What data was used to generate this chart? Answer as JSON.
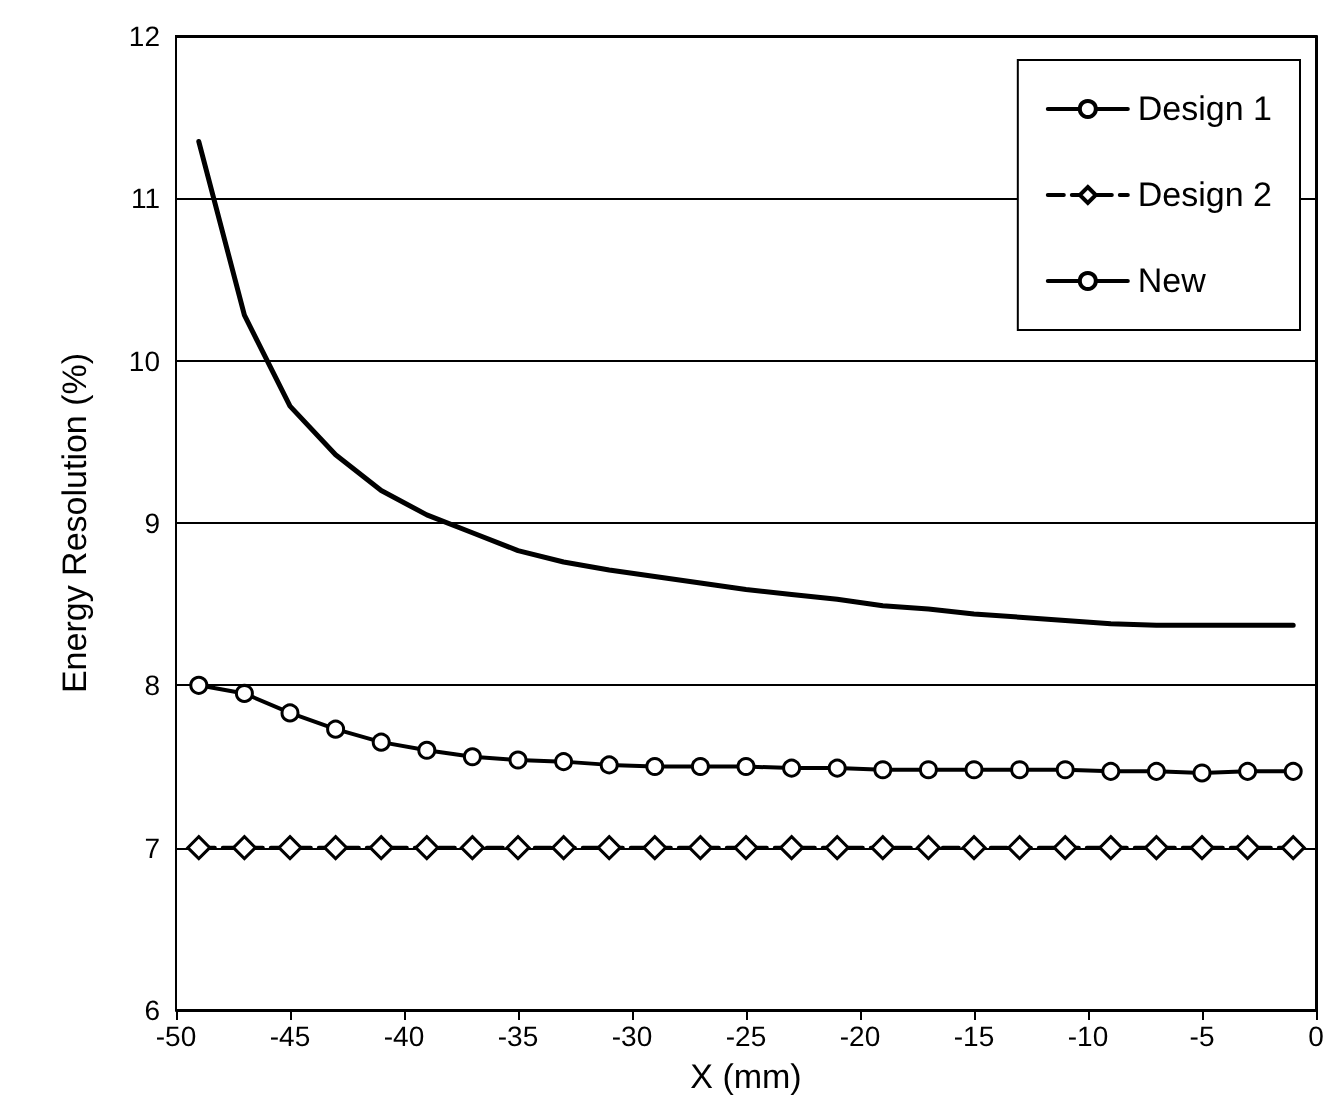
{
  "chart_data": {
    "type": "line",
    "xlabel": "X (mm)",
    "ylabel": "Energy Resolution (%)",
    "x": [
      -49,
      -47,
      -45,
      -43,
      -41,
      -39,
      -37,
      -35,
      -33,
      -31,
      -29,
      -27,
      -25,
      -23,
      -21,
      -19,
      -17,
      -15,
      -13,
      -11,
      -9,
      -7,
      -5,
      -3,
      -1
    ],
    "series": [
      {
        "name": "Design 1",
        "color": "#000000",
        "marker": "none",
        "line_style": "solid",
        "values": [
          11.35,
          10.28,
          9.72,
          9.42,
          9.2,
          9.05,
          8.94,
          8.83,
          8.76,
          8.71,
          8.67,
          8.63,
          8.59,
          8.56,
          8.53,
          8.49,
          8.47,
          8.44,
          8.42,
          8.4,
          8.38,
          8.37,
          8.37,
          8.37,
          8.37
        ]
      },
      {
        "name": "Design 2",
        "color": "#000000",
        "marker": "diamond",
        "line_style": "dashed",
        "values": [
          7.0,
          7.0,
          7.0,
          7.0,
          7.0,
          7.0,
          7.0,
          7.0,
          7.0,
          7.0,
          7.0,
          7.0,
          7.0,
          7.0,
          7.0,
          7.0,
          7.0,
          7.0,
          7.0,
          7.0,
          7.0,
          7.0,
          7.0,
          7.0,
          7.0
        ]
      },
      {
        "name": "New",
        "color": "#000000",
        "marker": "circle",
        "line_style": "solid",
        "values": [
          8.0,
          7.95,
          7.83,
          7.73,
          7.65,
          7.6,
          7.56,
          7.54,
          7.53,
          7.51,
          7.5,
          7.5,
          7.5,
          7.49,
          7.49,
          7.48,
          7.48,
          7.48,
          7.48,
          7.48,
          7.47,
          7.47,
          7.46,
          7.47,
          7.47
        ]
      }
    ],
    "xlim": [
      -50,
      0
    ],
    "xticks": [
      -50,
      -45,
      -40,
      -35,
      -30,
      -25,
      -20,
      -15,
      -10,
      -5,
      0
    ],
    "ylim": [
      6,
      12
    ],
    "yticks": [
      6,
      7,
      8,
      9,
      10,
      11,
      12
    ],
    "grid": "y",
    "legend": "top right"
  }
}
